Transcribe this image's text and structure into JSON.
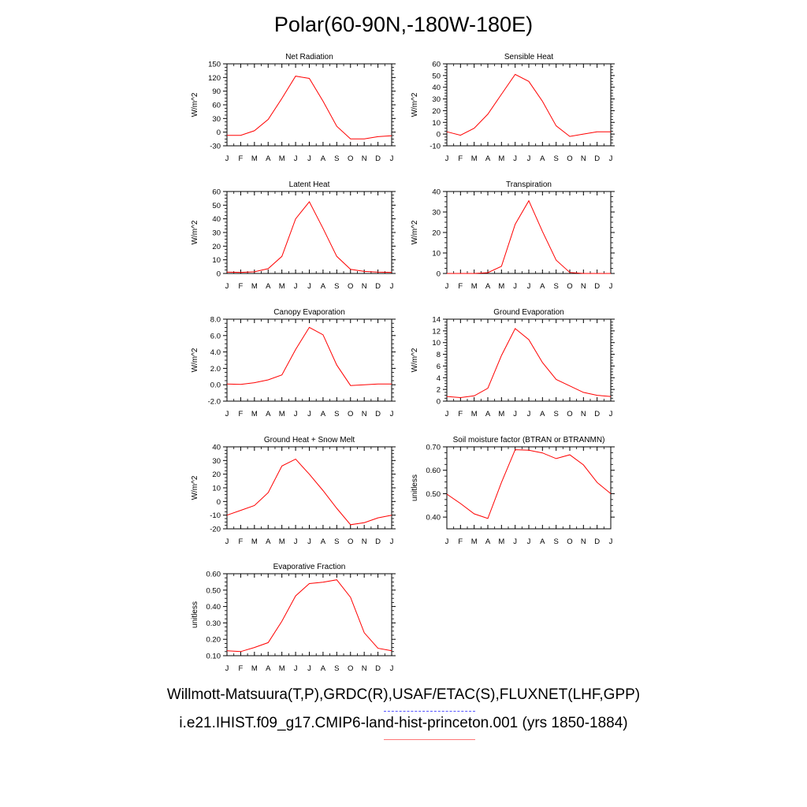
{
  "title": "Polar(60-90N,-180W-180E)",
  "legend": {
    "obs_label": "Willmott-Matsuura(T,P),GRDC(R),USAF/ETAC(S),FLUXNET(LHF,GPP)",
    "model_label": "i.e21.IHIST.f09_g17.CMIP6-land-hist-princeton.001 (yrs 1850-1884)",
    "obs_color": "#5555ff",
    "model_color": "#ff7777"
  },
  "series_color": "#ff0000",
  "chart_data": [
    {
      "type": "line",
      "title": "Net Radiation",
      "ylabel": "W/m^2",
      "x": [
        "J",
        "F",
        "M",
        "A",
        "M",
        "J",
        "J",
        "A",
        "S",
        "O",
        "N",
        "D",
        "J"
      ],
      "ylim": [
        -30,
        150
      ],
      "yticks": [
        "-30",
        "0",
        "30",
        "60",
        "90",
        "120",
        "150"
      ],
      "values": [
        -7,
        -7,
        3,
        28,
        74,
        123,
        118,
        68,
        13,
        -15,
        -15,
        -10,
        -8
      ]
    },
    {
      "type": "line",
      "title": "Sensible Heat",
      "ylabel": "W/m^2",
      "x": [
        "J",
        "F",
        "M",
        "A",
        "M",
        "J",
        "J",
        "A",
        "S",
        "O",
        "N",
        "D",
        "J"
      ],
      "ylim": [
        -10,
        60
      ],
      "yticks": [
        "-10",
        "0",
        "10",
        "20",
        "30",
        "40",
        "50",
        "60"
      ],
      "values": [
        2,
        -1,
        5,
        17,
        34,
        51,
        45,
        28,
        7,
        -2,
        0,
        2,
        2
      ]
    },
    {
      "type": "line",
      "title": "Latent Heat",
      "ylabel": "W/m^2",
      "x": [
        "J",
        "F",
        "M",
        "A",
        "M",
        "J",
        "J",
        "A",
        "S",
        "O",
        "N",
        "D",
        "J"
      ],
      "ylim": [
        0,
        60
      ],
      "yticks": [
        "0",
        "10",
        "20",
        "30",
        "40",
        "50",
        "60"
      ],
      "values": [
        1,
        0.8,
        1.2,
        3.5,
        12.5,
        40,
        52.5,
        33,
        12.5,
        3,
        1.5,
        1,
        0.8
      ]
    },
    {
      "type": "line",
      "title": "Transpiration",
      "ylabel": "W/m^2",
      "x": [
        "J",
        "F",
        "M",
        "A",
        "M",
        "J",
        "J",
        "A",
        "S",
        "O",
        "N",
        "D",
        "J"
      ],
      "ylim": [
        0,
        40
      ],
      "yticks": [
        "0",
        "10",
        "20",
        "30",
        "40"
      ],
      "values": [
        0,
        0,
        0,
        0.4,
        3.5,
        24,
        35.5,
        20.5,
        6.5,
        0.5,
        0,
        0,
        0
      ]
    },
    {
      "type": "line",
      "title": "Canopy Evaporation",
      "ylabel": "W/m^2",
      "x": [
        "J",
        "F",
        "M",
        "A",
        "M",
        "J",
        "J",
        "A",
        "S",
        "O",
        "N",
        "D",
        "J"
      ],
      "ylim": [
        -2,
        8
      ],
      "yticks": [
        "-2.0",
        "0.0",
        "2.0",
        "4.0",
        "6.0",
        "8.0"
      ],
      "values": [
        0.1,
        0.05,
        0.25,
        0.6,
        1.2,
        4.3,
        7.0,
        6.1,
        2.4,
        -0.1,
        0.0,
        0.1,
        0.1
      ]
    },
    {
      "type": "line",
      "title": "Ground Evaporation",
      "ylabel": "W/m^2",
      "x": [
        "J",
        "F",
        "M",
        "A",
        "M",
        "J",
        "J",
        "A",
        "S",
        "O",
        "N",
        "D",
        "J"
      ],
      "ylim": [
        0,
        14
      ],
      "yticks": [
        "0",
        "2",
        "4",
        "6",
        "8",
        "10",
        "12",
        "14"
      ],
      "values": [
        0.8,
        0.6,
        0.9,
        2.2,
        7.8,
        12.4,
        10.5,
        6.6,
        3.7,
        2.6,
        1.5,
        1.0,
        0.8
      ]
    },
    {
      "type": "line",
      "title": "Ground Heat + Snow Melt",
      "ylabel": "W/m^2",
      "x": [
        "J",
        "F",
        "M",
        "A",
        "M",
        "J",
        "J",
        "A",
        "S",
        "O",
        "N",
        "D",
        "J"
      ],
      "ylim": [
        -20,
        40
      ],
      "yticks": [
        "-20",
        "-10",
        "0",
        "10",
        "20",
        "30",
        "40"
      ],
      "values": [
        -10,
        -6.5,
        -3,
        6.5,
        26,
        31,
        20,
        8,
        -5,
        -17,
        -15.5,
        -12,
        -10
      ]
    },
    {
      "type": "line",
      "title": "Soil moisture factor (BTRAN or BTRANMN)",
      "ylabel": "unitless",
      "x": [
        "J",
        "F",
        "M",
        "A",
        "M",
        "J",
        "J",
        "A",
        "S",
        "O",
        "N",
        "D",
        "J"
      ],
      "ylim": [
        0.35,
        0.7
      ],
      "yticks": [
        "0.40",
        "0.50",
        "0.60",
        "0.70"
      ],
      "values": [
        0.498,
        0.458,
        0.414,
        0.394,
        0.548,
        0.688,
        0.686,
        0.674,
        0.65,
        0.666,
        0.623,
        0.548,
        0.5
      ]
    },
    {
      "type": "line",
      "title": "Evaporative Fraction",
      "ylabel": "unitless",
      "x": [
        "J",
        "F",
        "M",
        "A",
        "M",
        "J",
        "J",
        "A",
        "S",
        "O",
        "N",
        "D",
        "J"
      ],
      "ylim": [
        0.1,
        0.6
      ],
      "yticks": [
        "0.10",
        "0.20",
        "0.30",
        "0.40",
        "0.50",
        "0.60"
      ],
      "values": [
        0.13,
        0.125,
        0.15,
        0.18,
        0.31,
        0.465,
        0.54,
        0.548,
        0.563,
        0.456,
        0.24,
        0.145,
        0.13
      ]
    }
  ]
}
